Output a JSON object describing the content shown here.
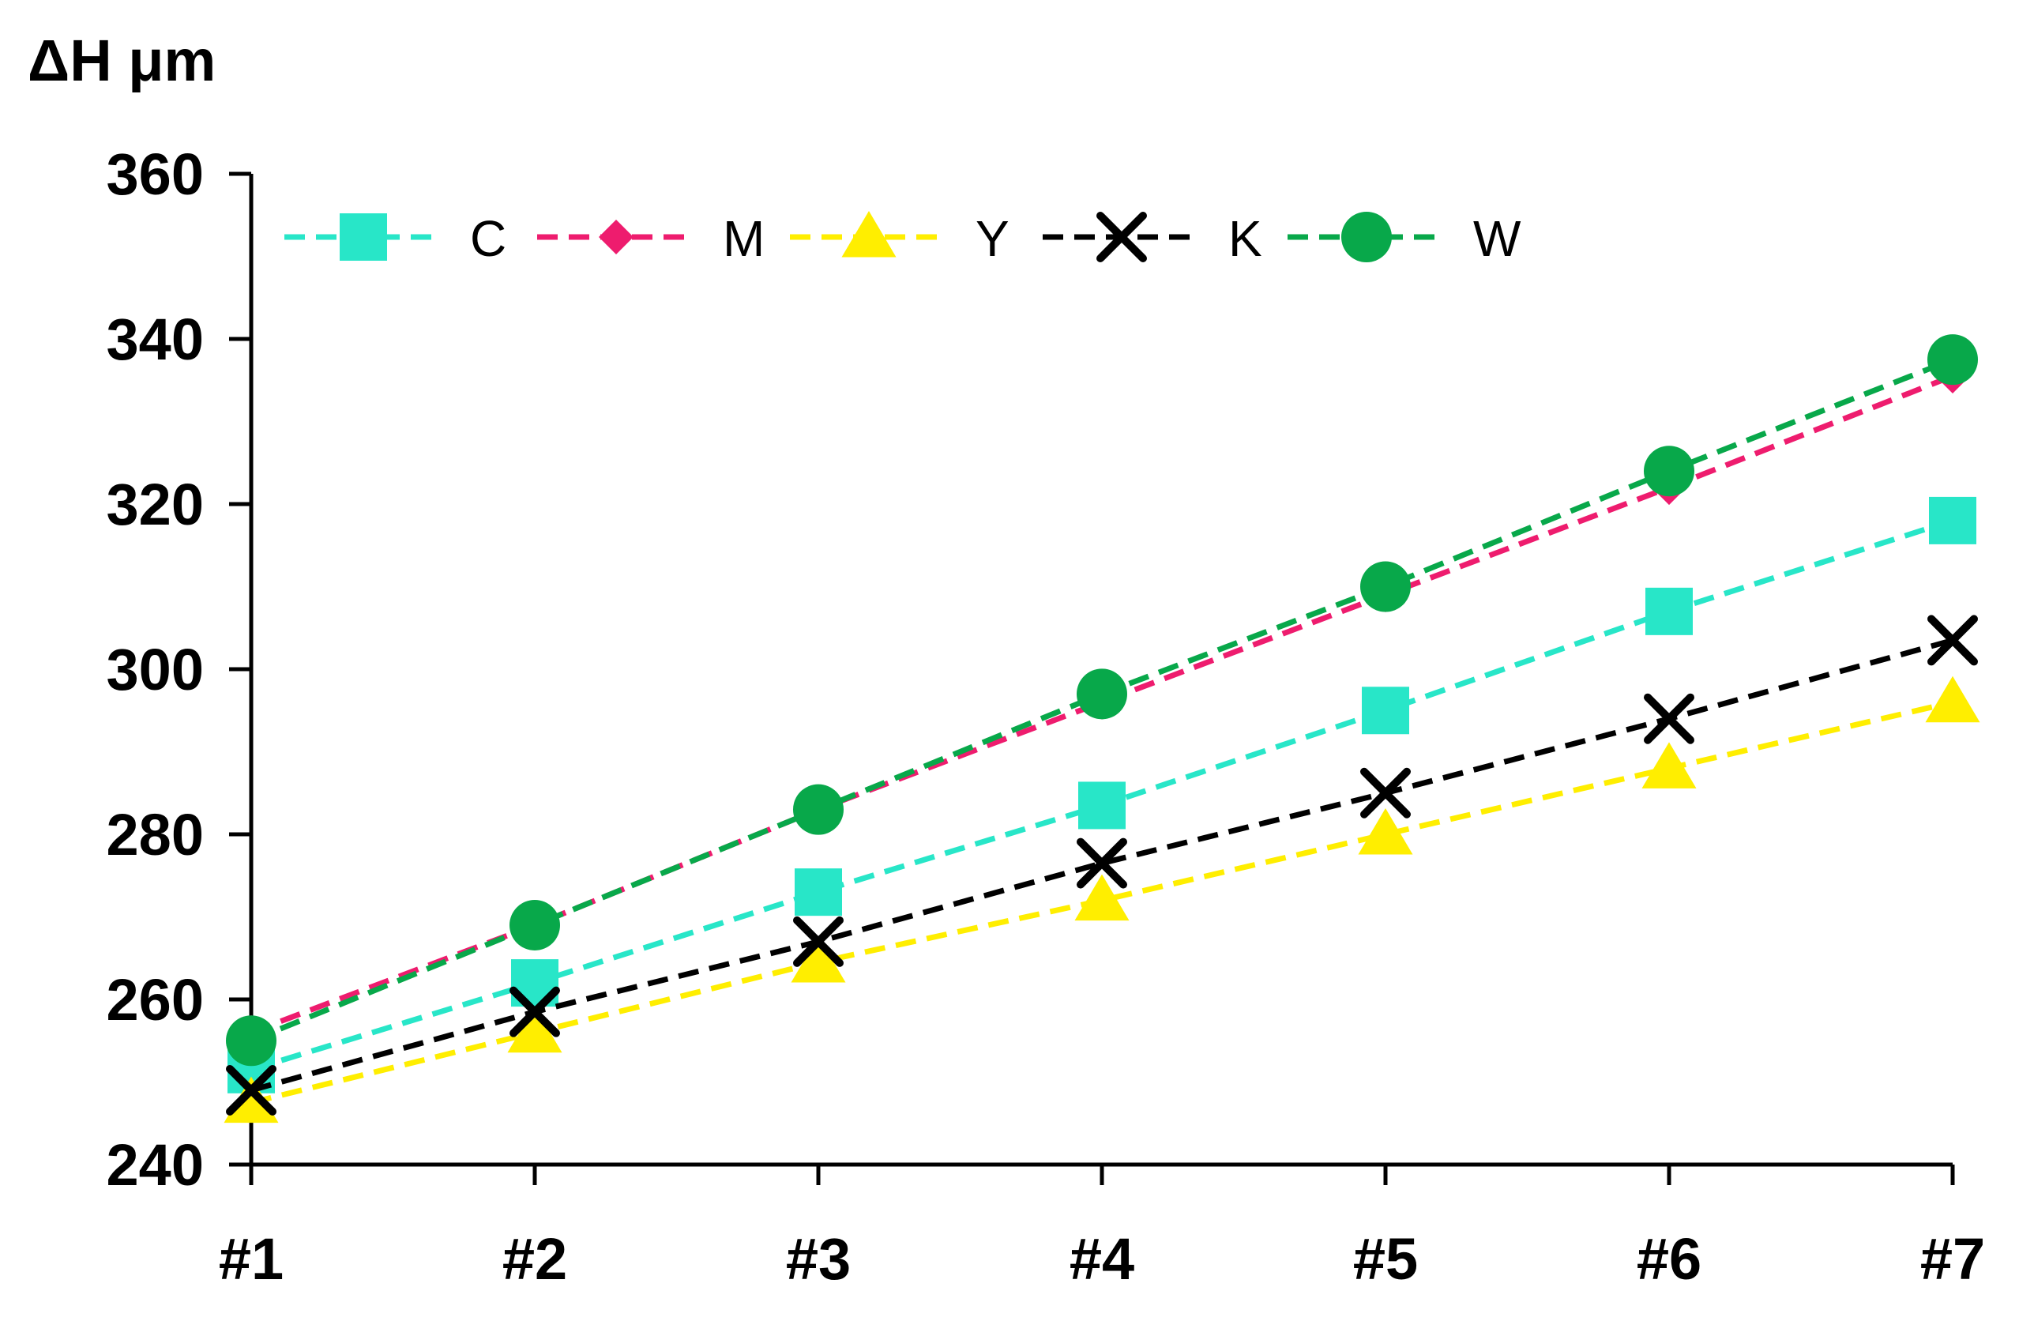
{
  "chart_data": {
    "type": "line",
    "ylabel": "ΔH μm",
    "xlabel": "",
    "title": "",
    "categories": [
      "#1",
      "#2",
      "#3",
      "#4",
      "#5",
      "#6",
      "#7"
    ],
    "ylim": [
      240,
      360
    ],
    "yticks": [
      240,
      260,
      280,
      300,
      320,
      340,
      360
    ],
    "grid": false,
    "legend_position": "top",
    "series": [
      {
        "name": "C",
        "color": "#28e6c8",
        "marker": "square",
        "values": [
          251.5,
          262,
          273,
          283.5,
          295,
          307,
          318
        ]
      },
      {
        "name": "M",
        "color": "#ee1c6e",
        "marker": "diamond",
        "values": [
          256,
          269,
          283,
          296,
          309,
          322,
          335.5
        ]
      },
      {
        "name": "Y",
        "color": "#ffee00",
        "marker": "triangle",
        "values": [
          247.5,
          256,
          264.5,
          272,
          280,
          288,
          296
        ]
      },
      {
        "name": "K",
        "color": "#000000",
        "marker": "x",
        "values": [
          249,
          258.5,
          267,
          276.5,
          285,
          294,
          303.5
        ]
      },
      {
        "name": "W",
        "color": "#08a84a",
        "marker": "circle",
        "values": [
          255,
          269,
          283,
          297,
          310,
          324,
          337.5
        ]
      }
    ]
  }
}
